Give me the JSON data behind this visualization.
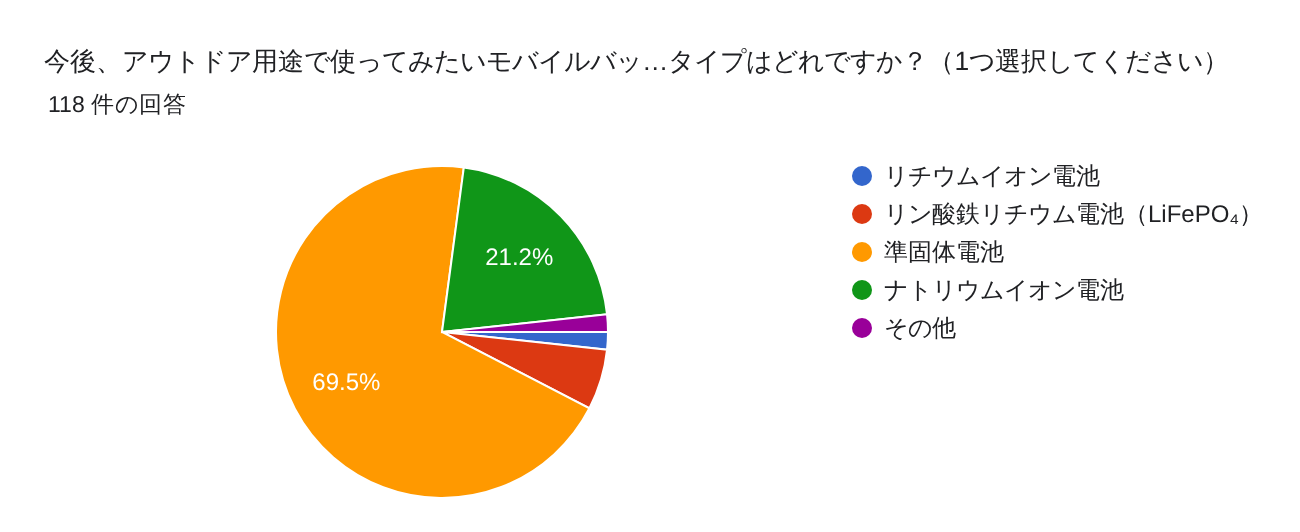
{
  "chart_data": {
    "type": "pie",
    "title": "今後、アウトドア用途で使ってみたいモバイルバッ…タイプはどれですか？（1つ選択してください）",
    "subtitle": "118 件の回答",
    "categories": [
      "リチウムイオン電池",
      "リン酸鉄リチウム電池（LiFePO₄）",
      "準固体電池",
      "ナトリウムイオン電池",
      "その他"
    ],
    "values": [
      1.7,
      5.9,
      69.5,
      21.2,
      1.7
    ],
    "colors": [
      "#3366cc",
      "#dc3912",
      "#ff9900",
      "#109618",
      "#990099"
    ],
    "value_labels": [
      null,
      null,
      "69.5%",
      "21.2%",
      null
    ],
    "legend": "right"
  }
}
